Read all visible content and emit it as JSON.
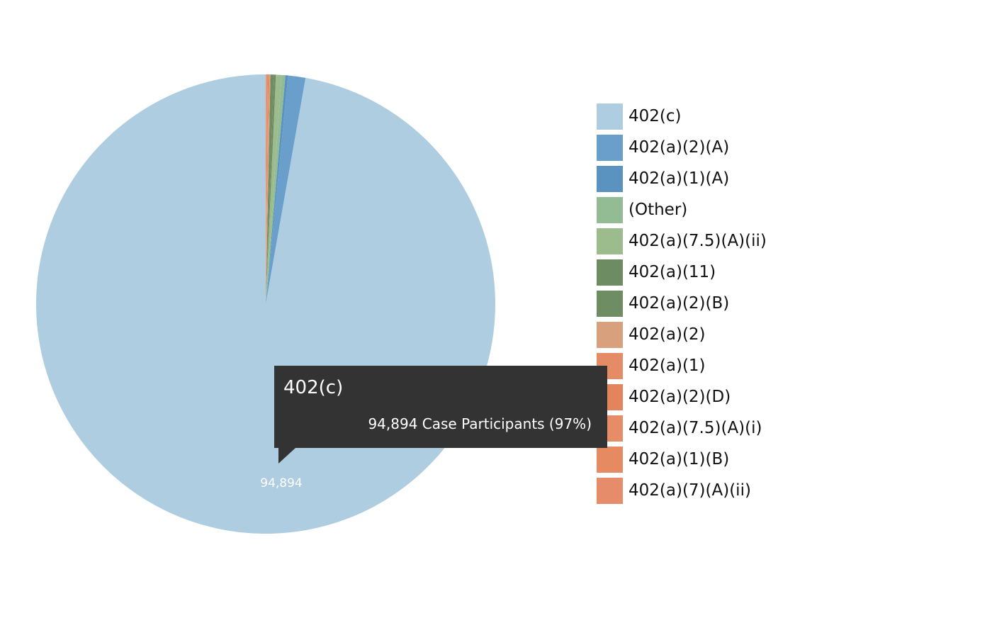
{
  "chart_data": {
    "type": "pie",
    "unit": "Case Participants",
    "slices": [
      {
        "label": "402(c)",
        "value": 94894,
        "color": "#aecde1"
      },
      {
        "label": "402(a)(2)(A)",
        "value": 1190,
        "color": "#6a9fcc"
      },
      {
        "label": "402(a)(1)(A)",
        "value": 190,
        "color": "#5a93bf"
      },
      {
        "label": "(Other)",
        "value": 260,
        "color": "#94bc94"
      },
      {
        "label": "402(a)(7.5)(A)(ii)",
        "value": 380,
        "color": "#9cbc8e"
      },
      {
        "label": "402(a)(11)",
        "value": 130,
        "color": "#6e8c62"
      },
      {
        "label": "402(a)(2)(B)",
        "value": 240,
        "color": "#6f8d62"
      },
      {
        "label": "402(a)(2)",
        "value": 60,
        "color": "#d9a07e"
      },
      {
        "label": "402(a)(1)",
        "value": 60,
        "color": "#e58c66"
      },
      {
        "label": "402(a)(2)(D)",
        "value": 50,
        "color": "#e4845c"
      },
      {
        "label": "402(a)(7.5)(A)(i)",
        "value": 70,
        "color": "#e68c66"
      },
      {
        "label": "402(a)(1)(B)",
        "value": 40,
        "color": "#e68a62"
      },
      {
        "label": "402(a)(7)(A)(ii)",
        "value": 40,
        "color": "#e68c6a"
      }
    ],
    "data_labels": [
      {
        "slice": 0,
        "text": "94,894"
      }
    ],
    "legend_position": "right"
  },
  "tooltip": {
    "title": "402(c)",
    "body": "94,894 Case Participants (97%)"
  }
}
